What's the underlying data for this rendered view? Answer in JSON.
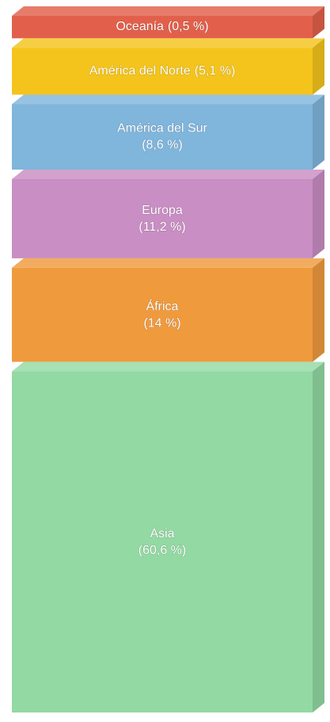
{
  "chart_data": {
    "type": "stacked-block",
    "categories": [
      "Oceanía",
      "América del Norte",
      "América del Sur",
      "Europa",
      "África",
      "Asia"
    ],
    "values": [
      0.5,
      5.1,
      8.6,
      11.2,
      14,
      60.6
    ],
    "value_labels": [
      "(0,5 %)",
      "(5,1 %)",
      "(8,6 %)",
      "(11,2 %)",
      "(14 %)",
      "(60,6 %)"
    ],
    "colors": [
      "#e2604b",
      "#f4c41c",
      "#80b5dc",
      "#c98ec3",
      "#f09a3e",
      "#93d9a3"
    ]
  }
}
